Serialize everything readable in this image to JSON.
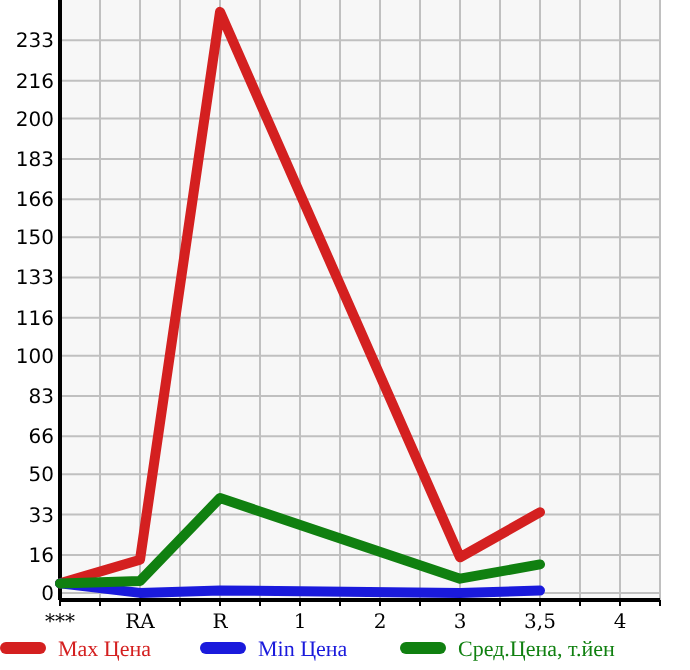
{
  "chart_data": {
    "type": "line",
    "categories": [
      "***",
      "RA",
      "R",
      "1",
      "2",
      "3",
      "3,5",
      "4"
    ],
    "series": [
      {
        "name": "Max Цена",
        "color": "#d42020",
        "values": [
          4,
          14,
          245,
          null,
          null,
          15,
          34,
          null
        ]
      },
      {
        "name": "Min Цена",
        "color": "#1a1adc",
        "values": [
          4,
          0,
          1,
          null,
          null,
          0,
          1,
          null
        ]
      },
      {
        "name": "Сред.Цена, т.йен",
        "color": "#108010",
        "values": [
          4,
          5,
          40,
          null,
          null,
          6,
          12,
          null
        ]
      }
    ],
    "ylim": [
      -3,
      250
    ],
    "yticks": [
      0,
      16,
      33,
      50,
      66,
      83,
      100,
      116,
      133,
      150,
      166,
      183,
      200,
      216,
      233
    ],
    "grid": true,
    "legend": "bottom",
    "marker": "none",
    "line_style": "solid"
  }
}
